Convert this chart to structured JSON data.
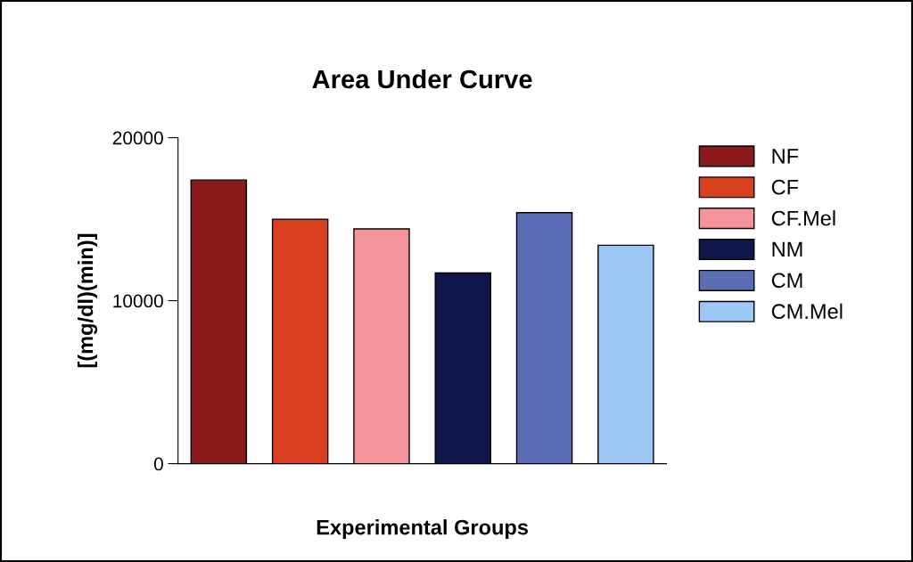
{
  "chart_data": {
    "type": "bar",
    "title": "Area Under Curve",
    "xlabel": "Experimental Groups",
    "ylabel": "[(mg/dl)(min)]",
    "categories": [
      null,
      null,
      null,
      null,
      null,
      null
    ],
    "series": [
      {
        "name": "NF",
        "color": "#8b1a1a",
        "values": [
          17400,
          null,
          null,
          null,
          null,
          null
        ]
      },
      {
        "name": "CF",
        "color": "#d9401f",
        "values": [
          null,
          15000,
          null,
          null,
          null,
          null
        ]
      },
      {
        "name": "CF.Mel",
        "color": "#f5939a",
        "values": [
          null,
          null,
          14400,
          null,
          null,
          null
        ]
      },
      {
        "name": "NM",
        "color": "#10174a",
        "values": [
          null,
          null,
          null,
          11700,
          null,
          null
        ]
      },
      {
        "name": "CM",
        "color": "#5b6db5",
        "values": [
          null,
          null,
          null,
          null,
          15400,
          null
        ]
      },
      {
        "name": "CM.Mel",
        "color": "#9cc8f5",
        "values": [
          null,
          null,
          null,
          null,
          null,
          13400
        ]
      }
    ],
    "ylim": [
      0,
      20000
    ],
    "yticks": [
      0,
      10000,
      20000
    ],
    "tick_labels": "y",
    "legend": "right",
    "grid": false
  }
}
